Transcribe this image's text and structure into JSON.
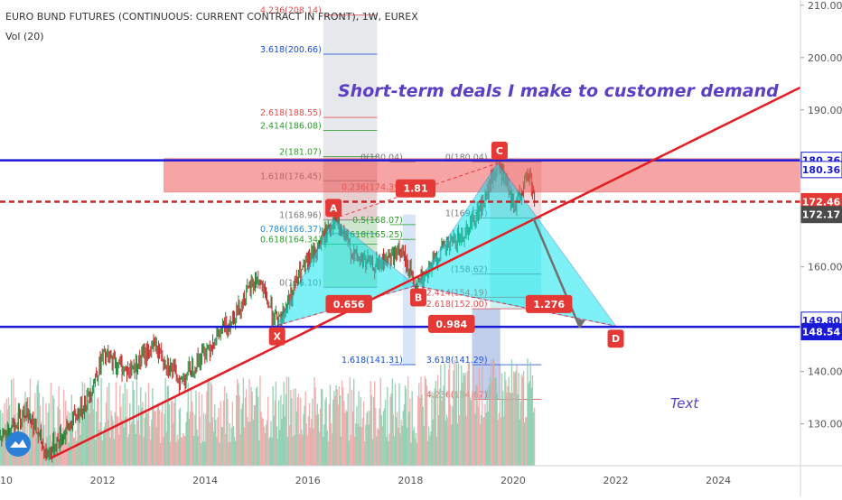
{
  "header": {
    "symbol_line": "EURO BUND FUTURES (CONTINUOUS: CURRENT CONTRACT IN FRONT), 1W, EUREX",
    "indicator": "Vol (20)"
  },
  "annotations": {
    "headline": "Short-term deals I make to customer demand",
    "text_label": "Text"
  },
  "chart_data": {
    "type": "candlestick",
    "x_axis": {
      "ticks": [
        "2010",
        "2012",
        "2014",
        "2016",
        "2018",
        "2020",
        "2022",
        "2024"
      ],
      "range": [
        2010,
        2025.6
      ]
    },
    "y_axis": {
      "ticks": [
        "130.00",
        "140.00",
        "150.00",
        "160.00",
        "170.00",
        "180.00",
        "190.00",
        "200.00",
        "210.00"
      ],
      "range": [
        122,
        211
      ]
    },
    "price_tags": [
      {
        "label": "180.36",
        "value": 180.36,
        "color": "#1a1ad6",
        "style": "outline"
      },
      {
        "label": "180.36",
        "value": 178.6,
        "color": "#1a1ad6",
        "style": "outline"
      },
      {
        "label": "172.46",
        "value": 172.46,
        "color": "#e53935",
        "style": "filled"
      },
      {
        "label": "172.17",
        "value": 170.0,
        "color": "#4a4a4a",
        "style": "filled"
      },
      {
        "label": "149.80",
        "value": 149.8,
        "color": "#1a1ad6",
        "style": "outline"
      },
      {
        "label": "148.54",
        "value": 147.6,
        "color": "#1a1ad6",
        "style": "filled"
      }
    ],
    "horizontal_lines": [
      {
        "value": 180.36,
        "color": "#1a1ad6"
      },
      {
        "value": 148.54,
        "color": "#1a1ad6"
      }
    ],
    "resistance_zone": {
      "from": 175.0,
      "to": 180.0,
      "x_start": 2013.2
    },
    "dashed_level": 172.46,
    "harmonic_pattern": {
      "points": [
        {
          "label": "X",
          "date": 2015.4,
          "price": 148.8
        },
        {
          "label": "A",
          "date": 2016.5,
          "price": 169.2
        },
        {
          "label": "B",
          "date": 2018.1,
          "price": 156.4
        },
        {
          "label": "C",
          "date": 2019.7,
          "price": 179.8
        },
        {
          "label": "D",
          "date": 2022.0,
          "price": 148.7
        }
      ],
      "ratios": [
        {
          "label": "0.656",
          "date": 2016.8,
          "price": 152.9
        },
        {
          "label": "1.81",
          "date": 2018.1,
          "price": 175.0
        },
        {
          "label": "0.984",
          "date": 2018.8,
          "price": 149.1
        },
        {
          "label": "1.276",
          "date": 2020.7,
          "price": 152.9
        }
      ]
    },
    "trend_line": {
      "from": {
        "date": 2011.0,
        "price": 123.5
      },
      "to": {
        "date": 2025.6,
        "price": 194.3
      }
    },
    "projection_arrow": {
      "from": {
        "date": 2020.4,
        "price": 169.2
      },
      "to": {
        "date": 2021.3,
        "price": 148.4
      }
    },
    "fib_left": {
      "levels": [
        {
          "label": "4.236(208.14)",
          "price": 208.14,
          "color": "#e05050"
        },
        {
          "label": "3.618(200.66)",
          "price": 200.66,
          "color": "#1a4fd6"
        },
        {
          "label": "2.618(188.55)",
          "price": 188.55,
          "color": "#e05050"
        },
        {
          "label": "2.414(186.08)",
          "price": 186.08,
          "color": "#2e9e2e"
        },
        {
          "label": "2(181.07)",
          "price": 181.07,
          "color": "#2e9e2e"
        },
        {
          "label": "1.618(176.45)",
          "price": 176.45,
          "color": "#777777"
        },
        {
          "label": "1(168.96)",
          "price": 168.96,
          "color": "#777777"
        },
        {
          "label": "0.786(166.37)",
          "price": 166.37,
          "color": "#2a8cd6"
        },
        {
          "label": "0.618(164.34)",
          "price": 164.34,
          "color": "#2e9e2e"
        },
        {
          "label": "0(156.10)",
          "price": 156.1,
          "color": "#777777"
        }
      ]
    },
    "fib_mid": {
      "levels": [
        {
          "label": "0(180.04)",
          "price": 180.04,
          "color": "#777777"
        },
        {
          "label": "0.236(174.39)",
          "price": 174.39,
          "color": "#e05050"
        },
        {
          "label": "0.5(168.07)",
          "price": 168.07,
          "color": "#2e9e2e"
        },
        {
          "label": "0.618(165.25)",
          "price": 165.25,
          "color": "#2e9e2e"
        },
        {
          "label": "1.618(141.31)",
          "price": 141.31,
          "color": "#1a4fd6"
        }
      ]
    },
    "fib_right": {
      "levels": [
        {
          "label": "0(180.04)",
          "price": 180.04,
          "color": "#777777"
        },
        {
          "label": "1(169.33)",
          "price": 169.33,
          "color": "#777777"
        },
        {
          "label": "(158.62)",
          "price": 158.62,
          "color": "#777777"
        },
        {
          "label": "2.414(154.19)",
          "price": 154.19,
          "color": "#e05050"
        },
        {
          "label": "2.618(152.00)",
          "price": 152.0,
          "color": "#e05050"
        },
        {
          "label": "3.618(141.29)",
          "price": 141.29,
          "color": "#1a4fd6"
        },
        {
          "label": "4.236(134.67)",
          "price": 134.67,
          "color": "#e05050"
        }
      ]
    },
    "colors": {
      "pattern_fill": "#00e5ee",
      "trend": "#e31e24",
      "levels": "#1a1ad6",
      "zone": "#f05a5a",
      "up": "#26a69a",
      "down": "#ef5350"
    }
  }
}
